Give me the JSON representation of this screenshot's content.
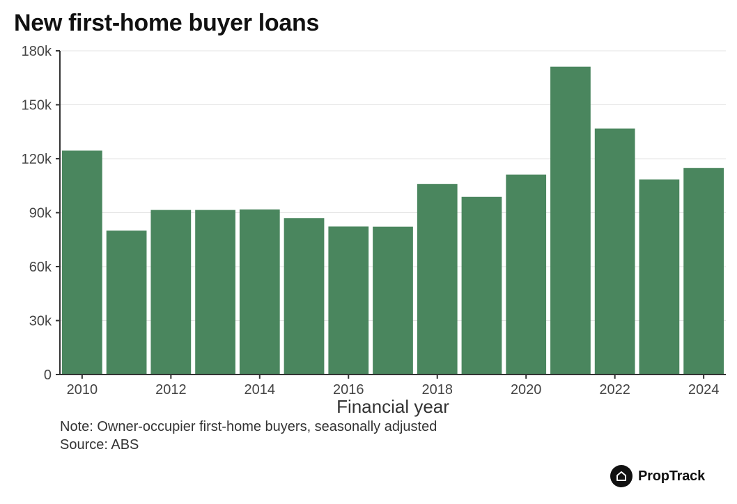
{
  "chart_data": {
    "type": "bar",
    "title": "New first-home buyer loans",
    "xlabel": "Financial year",
    "ylabel": "",
    "categories": [
      "2010",
      "2011",
      "2012",
      "2013",
      "2014",
      "2015",
      "2016",
      "2017",
      "2018",
      "2019",
      "2020",
      "2021",
      "2022",
      "2023",
      "2024"
    ],
    "x_tick_labels": [
      "2010",
      "2012",
      "2014",
      "2016",
      "2018",
      "2020",
      "2022",
      "2024"
    ],
    "values": [
      124500,
      80000,
      91500,
      91500,
      91800,
      87000,
      82300,
      82200,
      106000,
      98800,
      111200,
      171200,
      136800,
      108500,
      114900
    ],
    "ylim": [
      0,
      180000
    ],
    "y_ticks": [
      0,
      30000,
      60000,
      90000,
      120000,
      150000,
      180000
    ],
    "y_tick_labels": [
      "0",
      "30k",
      "60k",
      "90k",
      "120k",
      "150k",
      "180k"
    ],
    "grid": true,
    "bar_color": "#4a865e"
  },
  "notes": {
    "note": "Note: Owner-occupier first-home buyers, seasonally adjusted",
    "source": "Source: ABS"
  },
  "brand": {
    "name": "PropTrack",
    "icon": "house-icon"
  }
}
